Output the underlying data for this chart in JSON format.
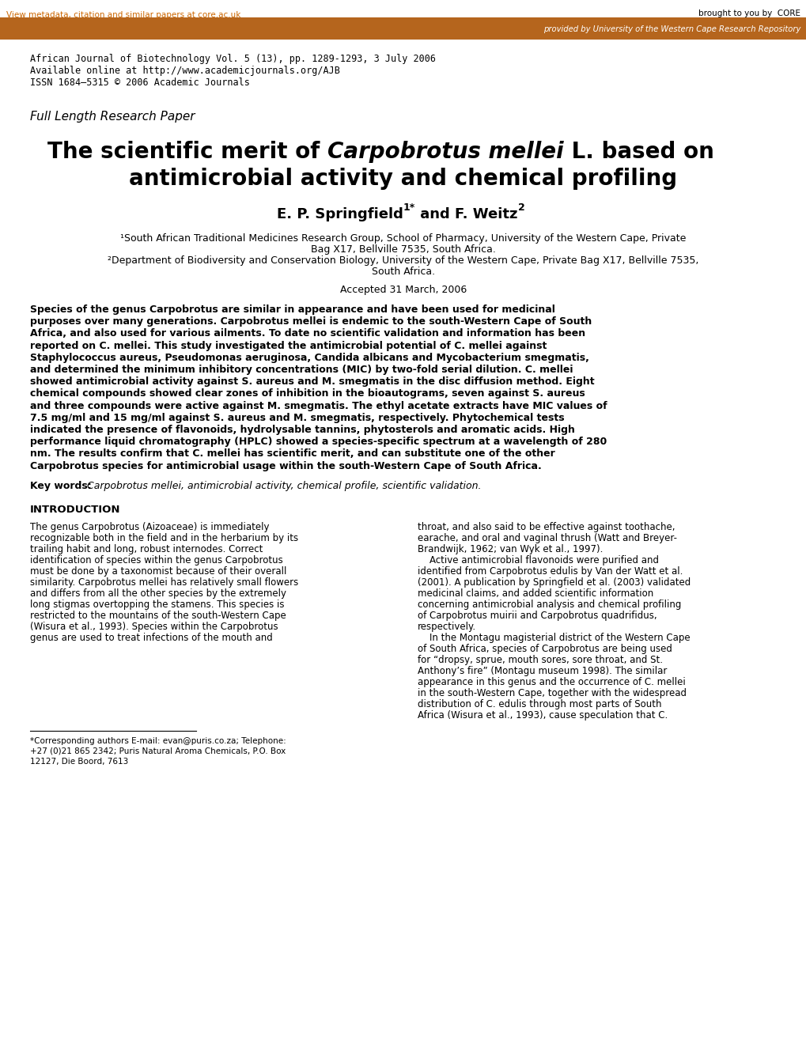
{
  "bg_color": "#ffffff",
  "header_bar_color": "#b5651d",
  "header_bar_text": "provided by University of the Western Cape Research Repository",
  "top_link_text": "View metadata, citation and similar papers at core.ac.uk",
  "top_link_color": "#cc6600",
  "core_text": "brought to you by  CORE",
  "journal_info": [
    "African Journal of Biotechnology Vol. 5 (13), pp. 1289-1293, 3 July 2006",
    "Available online at http://www.academicjournals.org/AJB",
    "ISSN 1684–5315 © 2006 Academic Journals"
  ],
  "section_label": "Full Length Research Paper",
  "title_line2": "antimicrobial activity and chemical profiling",
  "accepted": "Accepted 31 March, 2006",
  "affil1": "¹South African Traditional Medicines Research Group, School of Pharmacy, University of the Western Cape, Private",
  "affil1b": "Bag X17, Bellville 7535, South Africa.",
  "affil2": "²Department of Biodiversity and Conservation Biology, University of the Western Cape, Private Bag X17, Bellville 7535,",
  "affil2b": "South Africa.",
  "abstract_lines": [
    "Species of the genus Carpobrotus are similar in appearance and have been used for medicinal",
    "purposes over many generations. Carpobrotus mellei is endemic to the south-Western Cape of South",
    "Africa, and also used for various ailments. To date no scientific validation and information has been",
    "reported on C. mellei. This study investigated the antimicrobial potential of C. mellei against",
    "Staphylococcus aureus, Pseudomonas aeruginosa, Candida albicans and Mycobacterium smegmatis,",
    "and determined the minimum inhibitory concentrations (MIC) by two-fold serial dilution. C. mellei",
    "showed antimicrobial activity against S. aureus and M. smegmatis in the disc diffusion method. Eight",
    "chemical compounds showed clear zones of inhibition in the bioautograms, seven against S. aureus",
    "and three compounds were active against M. smegmatis. The ethyl acetate extracts have MIC values of",
    "7.5 mg/ml and 15 mg/ml against S. aureus and M. smegmatis, respectively. Phytochemical tests",
    "indicated the presence of flavonoids, hydrolysable tannins, phytosterols and aromatic acids. High",
    "performance liquid chromatography (HPLC) showed a species-specific spectrum at a wavelength of 280",
    "nm. The results confirm that C. mellei has scientific merit, and can substitute one of the other",
    "Carpobrotus species for antimicrobial usage within the south-Western Cape of South Africa."
  ],
  "keywords_label": "Key words:",
  "keywords_text": "Carpobrotus mellei, antimicrobial activity, chemical profile, scientific validation.",
  "intro_heading": "INTRODUCTION",
  "intro_col1": [
    "The genus Carpobrotus (Aizoaceae) is immediately",
    "recognizable both in the field and in the herbarium by its",
    "trailing habit and long, robust internodes. Correct",
    "identification of species within the genus Carpobrotus",
    "must be done by a taxonomist because of their overall",
    "similarity. Carpobrotus mellei has relatively small flowers",
    "and differs from all the other species by the extremely",
    "long stigmas overtopping the stamens. This species is",
    "restricted to the mountains of the south-Western Cape",
    "(Wisura et al., 1993). Species within the Carpobrotus",
    "genus are used to treat infections of the mouth and"
  ],
  "intro_col2": [
    "throat, and also said to be effective against toothache,",
    "earache, and oral and vaginal thrush (Watt and Breyer-",
    "Brandwijk, 1962; van Wyk et al., 1997).",
    "    Active antimicrobial flavonoids were purified and",
    "identified from Carpobrotus edulis by Van der Watt et al.",
    "(2001). A publication by Springfield et al. (2003) validated",
    "medicinal claims, and added scientific information",
    "concerning antimicrobial analysis and chemical profiling",
    "of Carpobrotus muirii and Carpobrotus quadrifidus,",
    "respectively.",
    "    In the Montagu magisterial district of the Western Cape",
    "of South Africa, species of Carpobrotus are being used",
    "for “dropsy, sprue, mouth sores, sore throat, and St.",
    "Anthony’s fire” (Montagu museum 1998). The similar",
    "appearance in this genus and the occurrence of C. mellei",
    "in the south-Western Cape, together with the widespread",
    "distribution of C. edulis through most parts of South",
    "Africa (Wisura et al., 1993), cause speculation that C."
  ],
  "footnote": [
    "*Corresponding authors E-mail: evan@puris.co.za; Telephone:",
    "+27 (0)21 865 2342; Puris Natural Aroma Chemicals, P.O. Box",
    "12127, Die Boord, 7613"
  ]
}
